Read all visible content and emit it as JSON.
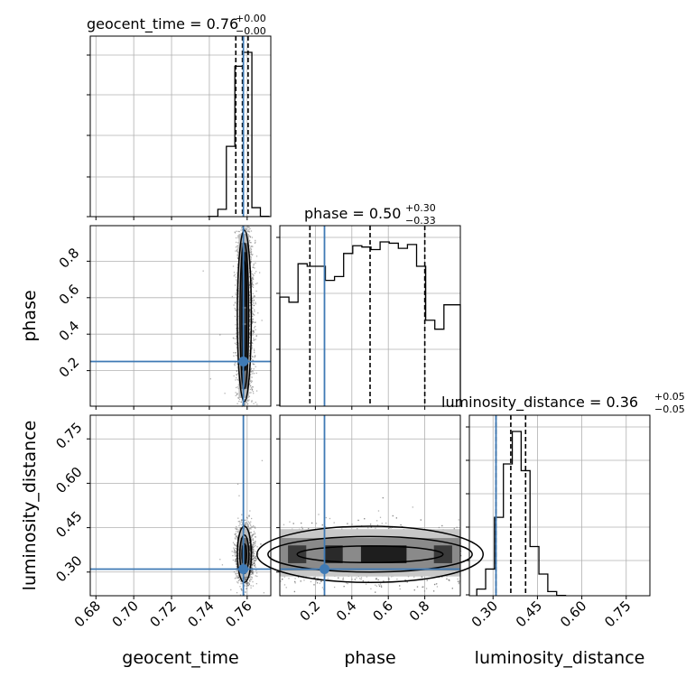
{
  "chart_data": {
    "type": "corner",
    "parameters": [
      "geocent_time",
      "phase",
      "luminosity_distance"
    ],
    "truth": {
      "geocent_time": 0.758,
      "phase": 0.25,
      "luminosity_distance": 0.31
    },
    "colors": {
      "truth": "#3f7ab5",
      "hist": "#000000",
      "grid": "#b0b0b0"
    },
    "grid": true,
    "titles": [
      {
        "param": "geocent_time",
        "text": "geocent_time = 0.76",
        "upper": "+0.00",
        "lower": "−0.00"
      },
      {
        "param": "phase",
        "text": "phase = 0.50",
        "upper": "+0.30",
        "lower": "−0.33"
      },
      {
        "param": "luminosity_distance",
        "text": "luminosity_distance = 0.36",
        "upper": "+0.05",
        "lower": "−0.05"
      }
    ],
    "axis_labels": {
      "x": [
        "geocent_time",
        "phase",
        "luminosity_distance"
      ],
      "y": [
        "phase",
        "luminosity_distance"
      ]
    },
    "ranges": {
      "geocent_time": [
        0.677,
        0.7725
      ],
      "phase": [
        0.005,
        0.995
      ],
      "luminosity_distance": [
        0.22,
        0.83
      ]
    },
    "ticks": {
      "geocent_time": [
        "0.68",
        "0.70",
        "0.72",
        "0.74",
        "0.76"
      ],
      "phase": [
        "0.2",
        "0.4",
        "0.6",
        "0.8"
      ],
      "luminosity_distance": [
        "0.30",
        "0.45",
        "0.60",
        "0.75"
      ]
    },
    "histograms": [
      {
        "param": "geocent_time",
        "bin_edges": [
          0.7395,
          0.7445,
          0.749,
          0.7535,
          0.758,
          0.7625,
          0.767,
          0.7715
        ],
        "counts": [
          1,
          45,
          430,
          920,
          1005,
          55,
          2
        ],
        "quantiles": [
          0.754,
          0.7575,
          0.7605
        ]
      },
      {
        "param": "phase",
        "bin_edges": [
          0.005,
          0.055,
          0.105,
          0.155,
          0.205,
          0.255,
          0.305,
          0.355,
          0.405,
          0.455,
          0.505,
          0.555,
          0.605,
          0.655,
          0.705,
          0.755,
          0.805,
          0.855,
          0.905,
          0.955,
          0.995
        ],
        "counts": [
          425,
          405,
          555,
          545,
          545,
          490,
          505,
          595,
          625,
          620,
          610,
          640,
          635,
          615,
          630,
          545,
          335,
          300,
          395,
          395
        ],
        "quantiles": [
          0.17,
          0.5,
          0.8
        ]
      },
      {
        "param": "luminosity_distance",
        "bin_edges": [
          0.245,
          0.275,
          0.305,
          0.335,
          0.365,
          0.395,
          0.425,
          0.455,
          0.485,
          0.515,
          0.545
        ],
        "counts": [
          40,
          160,
          470,
          790,
          985,
          750,
          295,
          130,
          25,
          2
        ],
        "quantiles": [
          0.31,
          0.36,
          0.41
        ]
      }
    ]
  }
}
